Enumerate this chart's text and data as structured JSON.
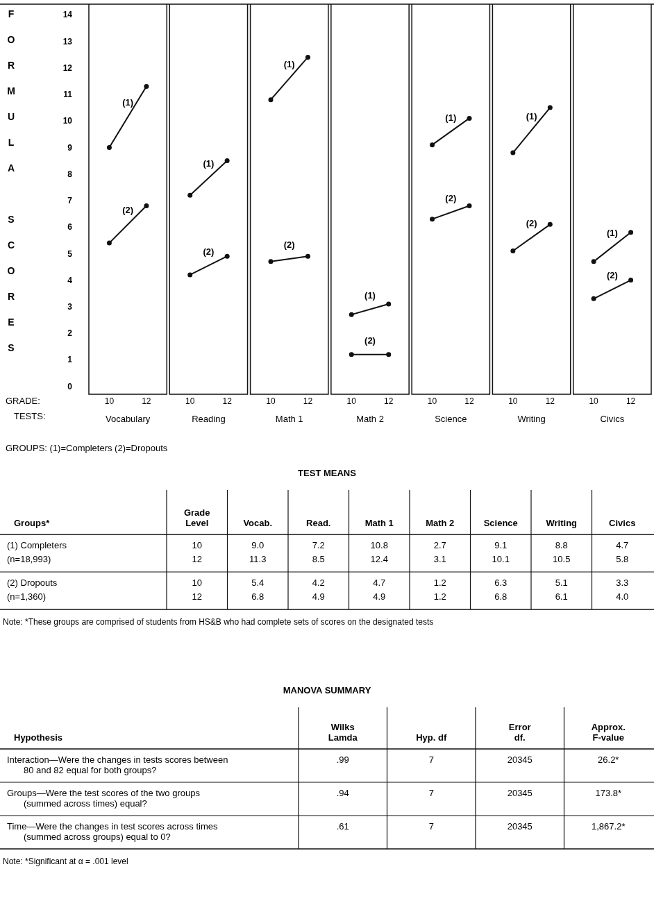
{
  "chart_data": [
    {
      "type": "line",
      "xlabel": "Vocabulary",
      "ylabel": "FORMULA SCORES",
      "categories": [
        "10",
        "12"
      ],
      "ylim": [
        -0.3,
        14.4
      ],
      "yticks": [
        0,
        1,
        2,
        3,
        4,
        5,
        6,
        7,
        8,
        9,
        10,
        11,
        12,
        13,
        14
      ],
      "marker": "circle",
      "line_style": "solid",
      "annotations": [
        "GRADE:",
        "TESTS:",
        "GROUPS: (1)=Completers  (2)=Dropouts"
      ],
      "series": [
        {
          "name": "(1)",
          "color": "#111111",
          "values": [
            9.0,
            11.3
          ]
        },
        {
          "name": "(2)",
          "color": "#111111",
          "values": [
            5.4,
            6.8
          ]
        }
      ]
    },
    {
      "type": "line",
      "xlabel": "Reading",
      "categories": [
        "10",
        "12"
      ],
      "ylim": [
        -0.3,
        14.4
      ],
      "yticks": [
        0,
        1,
        2,
        3,
        4,
        5,
        6,
        7,
        8,
        9,
        10,
        11,
        12,
        13,
        14
      ],
      "tick_labels": "x",
      "marker": "circle",
      "line_style": "solid",
      "series": [
        {
          "name": "(1)",
          "color": "#111111",
          "values": [
            7.2,
            8.5
          ]
        },
        {
          "name": "(2)",
          "color": "#111111",
          "values": [
            4.2,
            4.9
          ]
        }
      ]
    },
    {
      "type": "line",
      "xlabel": "Math 1",
      "categories": [
        "10",
        "12"
      ],
      "ylim": [
        -0.3,
        14.4
      ],
      "yticks": [
        0,
        1,
        2,
        3,
        4,
        5,
        6,
        7,
        8,
        9,
        10,
        11,
        12,
        13,
        14
      ],
      "tick_labels": "x",
      "marker": "circle",
      "line_style": "solid",
      "series": [
        {
          "name": "(1)",
          "color": "#111111",
          "values": [
            10.8,
            12.4
          ]
        },
        {
          "name": "(2)",
          "color": "#111111",
          "values": [
            4.7,
            4.9
          ]
        }
      ]
    },
    {
      "type": "line",
      "xlabel": "Math 2",
      "categories": [
        "10",
        "12"
      ],
      "ylim": [
        -0.3,
        14.4
      ],
      "yticks": [
        0,
        1,
        2,
        3,
        4,
        5,
        6,
        7,
        8,
        9,
        10,
        11,
        12,
        13,
        14
      ],
      "tick_labels": "x",
      "marker": "circle",
      "line_style": "solid",
      "series": [
        {
          "name": "(1)",
          "color": "#111111",
          "values": [
            2.7,
            3.1
          ]
        },
        {
          "name": "(2)",
          "color": "#111111",
          "values": [
            1.2,
            1.2
          ]
        }
      ]
    },
    {
      "type": "line",
      "xlabel": "Science",
      "categories": [
        "10",
        "12"
      ],
      "ylim": [
        -0.3,
        14.4
      ],
      "yticks": [
        0,
        1,
        2,
        3,
        4,
        5,
        6,
        7,
        8,
        9,
        10,
        11,
        12,
        13,
        14
      ],
      "tick_labels": "x",
      "marker": "circle",
      "line_style": "solid",
      "series": [
        {
          "name": "(1)",
          "color": "#111111",
          "values": [
            9.1,
            10.1
          ]
        },
        {
          "name": "(2)",
          "color": "#111111",
          "values": [
            6.3,
            6.8
          ]
        }
      ]
    },
    {
      "type": "line",
      "xlabel": "Writing",
      "categories": [
        "10",
        "12"
      ],
      "ylim": [
        -0.3,
        14.4
      ],
      "yticks": [
        0,
        1,
        2,
        3,
        4,
        5,
        6,
        7,
        8,
        9,
        10,
        11,
        12,
        13,
        14
      ],
      "tick_labels": "x",
      "marker": "circle",
      "line_style": "solid",
      "series": [
        {
          "name": "(1)",
          "color": "#111111",
          "values": [
            8.8,
            10.5
          ]
        },
        {
          "name": "(2)",
          "color": "#111111",
          "values": [
            5.1,
            6.1
          ]
        }
      ]
    },
    {
      "type": "line",
      "xlabel": "Civics",
      "categories": [
        "10",
        "12"
      ],
      "ylim": [
        -0.3,
        14.4
      ],
      "yticks": [
        0,
        1,
        2,
        3,
        4,
        5,
        6,
        7,
        8,
        9,
        10,
        11,
        12,
        13,
        14
      ],
      "tick_labels": "x",
      "marker": "circle",
      "line_style": "solid",
      "series": [
        {
          "name": "(1)",
          "color": "#111111",
          "values": [
            4.7,
            5.8
          ]
        },
        {
          "name": "(2)",
          "color": "#111111",
          "values": [
            3.3,
            4.0
          ]
        }
      ]
    },
    {
      "type": "other",
      "title": "TEST MEANS",
      "ylabel": "Groups*",
      "categories": [
        "Grade Level",
        "Vocab.",
        "Read.",
        "Math 1",
        "Math 2",
        "Science",
        "Writing",
        "Civics"
      ],
      "y_categories": [
        "(1)  Completers",
        "(n=18,993)",
        "(2)  Dropouts",
        "(n=1,360)"
      ],
      "cell_labels": [
        [
          "10",
          "9.0",
          "7.2",
          "10.8",
          "2.7",
          "9.1",
          "8.8",
          "4.7"
        ],
        [
          "12",
          "11.3",
          "8.5",
          "12.4",
          "3.1",
          "10.1",
          "10.5",
          "5.8"
        ],
        [
          "10",
          "5.4",
          "4.2",
          "4.7",
          "1.2",
          "6.3",
          "5.1",
          "3.3"
        ],
        [
          "12",
          "6.8",
          "4.9",
          "4.9",
          "1.2",
          "6.8",
          "6.1",
          "4.0"
        ]
      ],
      "annotations": [
        "Note: *These groups are comprised of students from HS&B who had complete sets of scores on the designated tests"
      ]
    },
    {
      "type": "other",
      "title": "MANOVA SUMMARY",
      "ylabel": "Hypothesis",
      "categories": [
        "Wilks Lamda",
        "Hyp. df",
        "Error df.",
        "Approx. F-value"
      ],
      "y_categories": [
        "Interaction—Were the changes in tests scores between 80 and 82 equal for both groups?",
        "Groups—Were the test scores of the two groups (summed across times) equal?",
        "Time—Were the changes in test scores across times (summed across groups) equal to 0?"
      ],
      "cell_labels": [
        [
          ".99",
          "7",
          "20345",
          "26.2*"
        ],
        [
          ".94",
          "7",
          "20345",
          "173.8*"
        ],
        [
          ".61",
          "7",
          "20345",
          "1,867.2*"
        ]
      ],
      "annotations": [
        "Note: *Significant at α = .001 level"
      ]
    }
  ]
}
